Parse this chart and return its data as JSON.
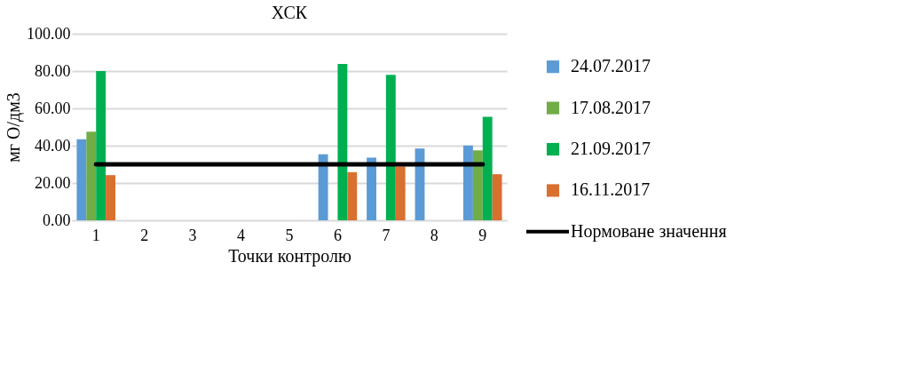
{
  "chart_data": {
    "type": "bar",
    "title": "ХСК",
    "xlabel": "Точки контролю",
    "ylabel": "мг О/дм3",
    "categories": [
      "1",
      "2",
      "3",
      "4",
      "5",
      "6",
      "7",
      "8",
      "9"
    ],
    "series": [
      {
        "name": "24.07.2017",
        "color": "#5b9bd5",
        "values": [
          43.4,
          null,
          null,
          null,
          null,
          35.4,
          33.6,
          38.5,
          40.1
        ]
      },
      {
        "name": "17.08.2017",
        "color": "#70ad47",
        "values": [
          47.5,
          null,
          null,
          null,
          null,
          null,
          null,
          null,
          37.5
        ]
      },
      {
        "name": "21.09.2017",
        "color": "#00b050",
        "values": [
          80,
          null,
          null,
          null,
          null,
          83.8,
          78,
          null,
          55.5
        ]
      },
      {
        "name": "16.11.2017",
        "color": "#d87030",
        "values": [
          24.2,
          null,
          null,
          null,
          null,
          25.8,
          28.8,
          null,
          24.7
        ]
      },
      {
        "name": "Нормоване значення",
        "type": "line",
        "color": "#000000",
        "values": [
          30,
          30,
          30,
          30,
          30,
          30,
          30,
          30,
          30
        ]
      }
    ],
    "ylim": [
      0,
      100
    ],
    "yticks": [
      {
        "value": 0,
        "label": "0.00"
      },
      {
        "value": 20,
        "label": "20.00"
      },
      {
        "value": 40,
        "label": "40.00"
      },
      {
        "value": 60,
        "label": "60.00"
      },
      {
        "value": 80,
        "label": "80.00"
      },
      {
        "value": 100,
        "label": "100.00"
      }
    ],
    "grid": "y",
    "legend": "right"
  }
}
